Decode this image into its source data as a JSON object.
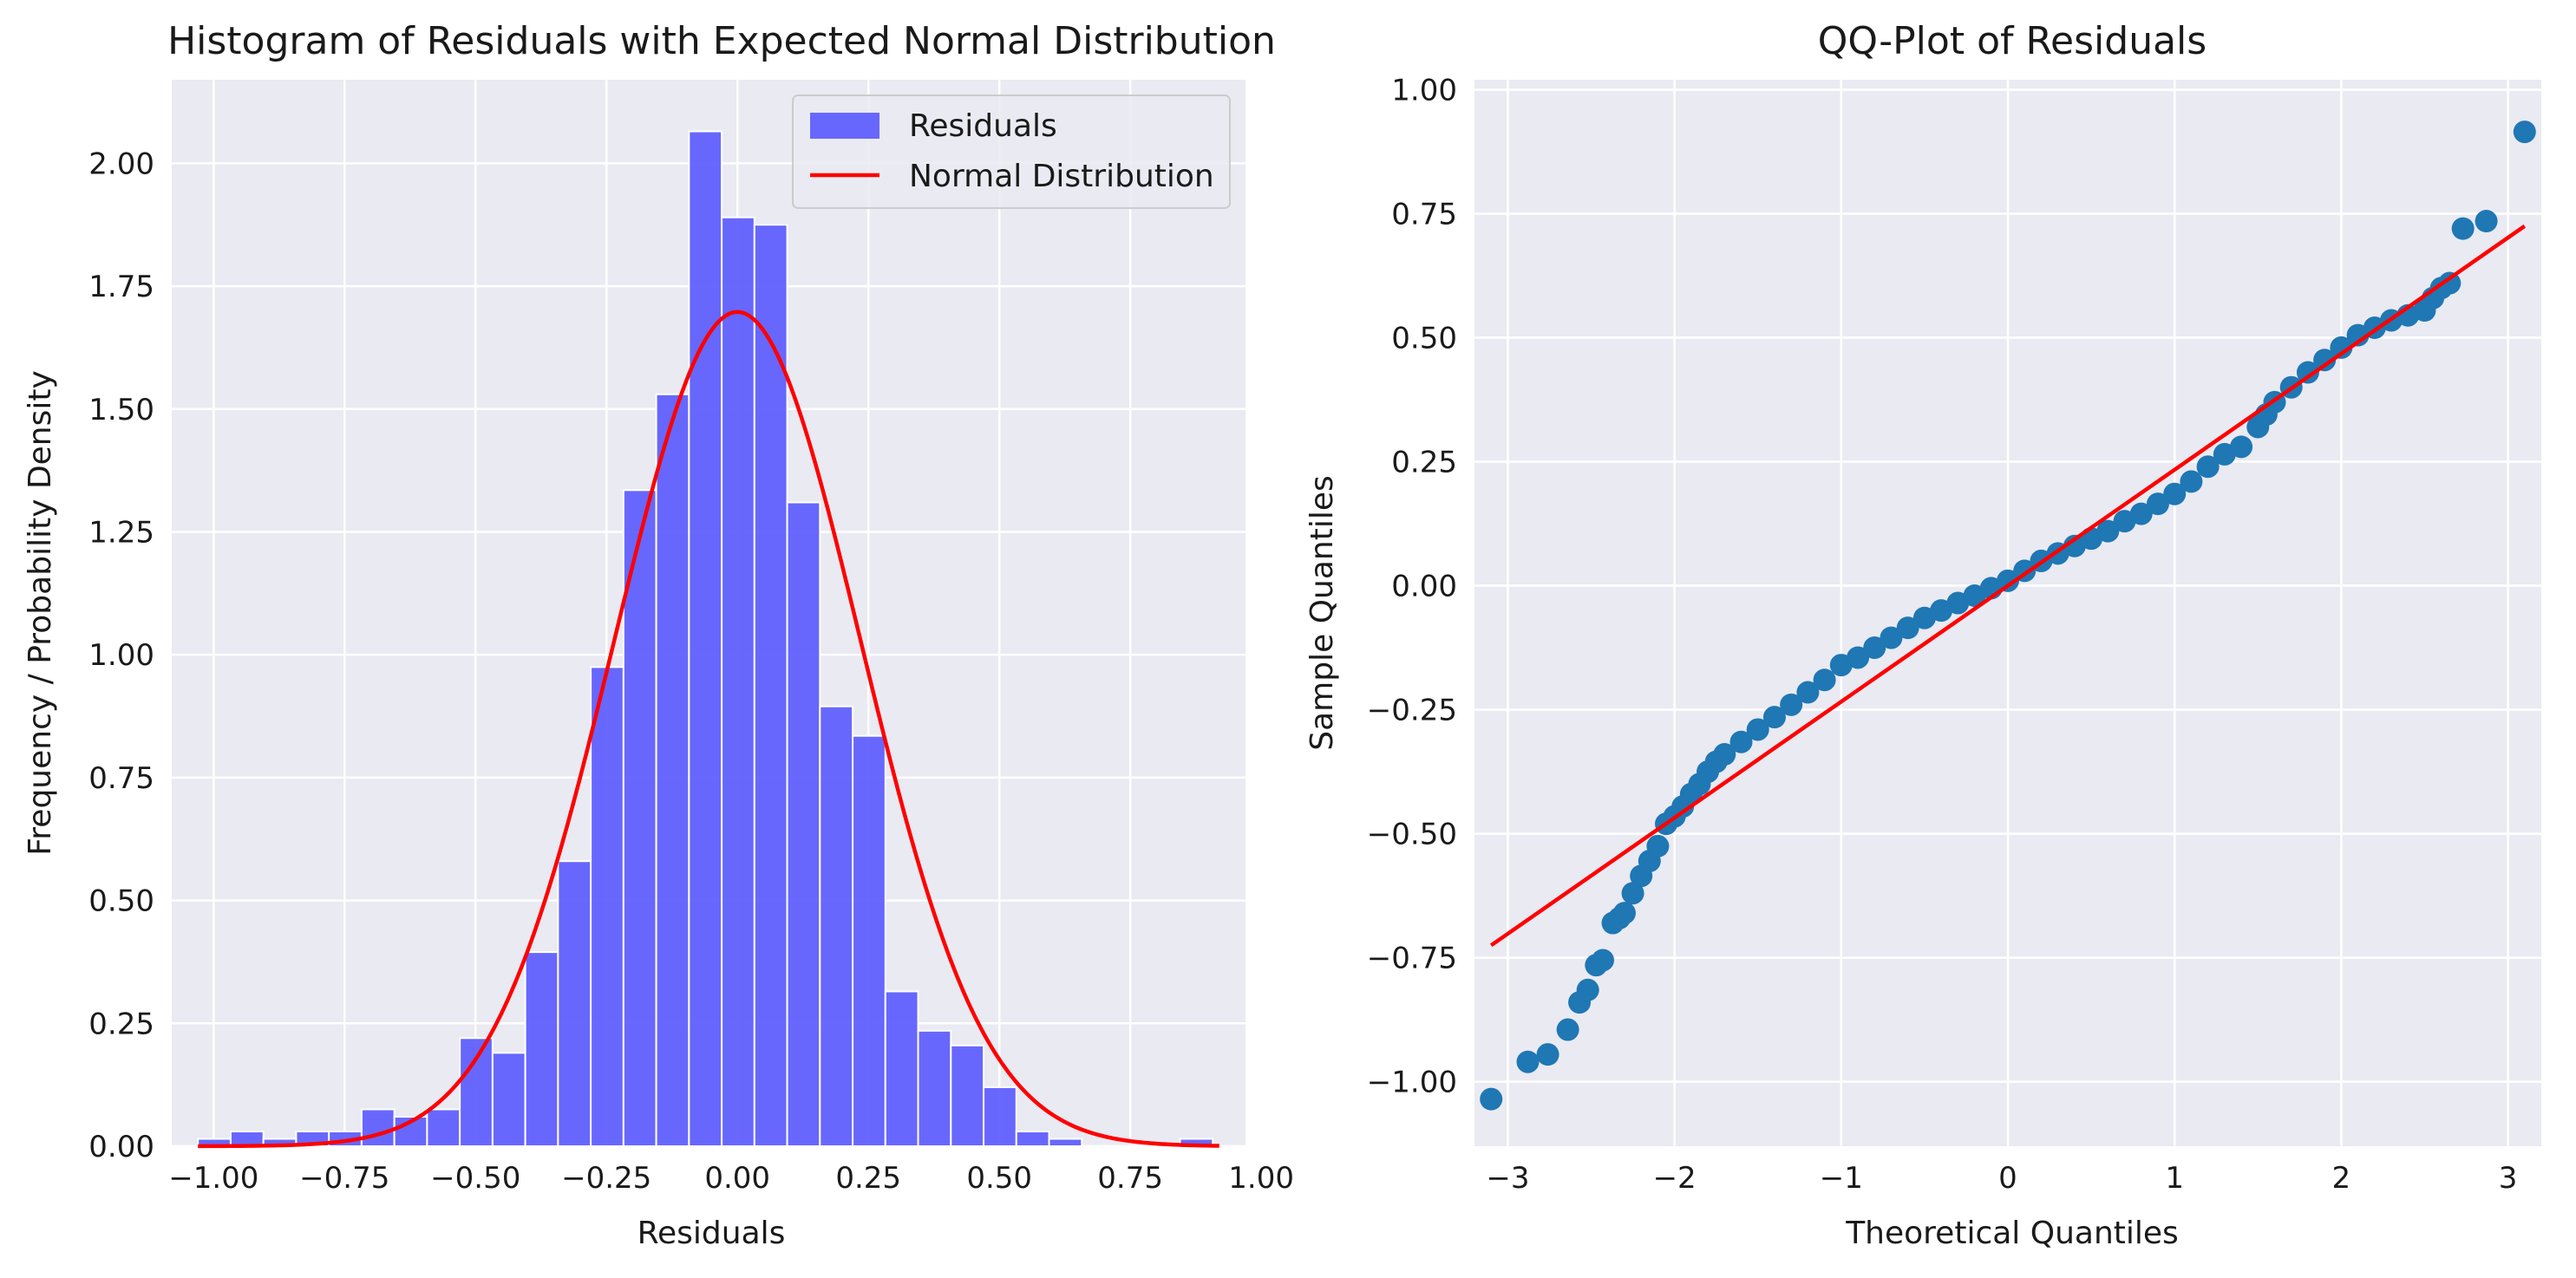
{
  "chart_data": [
    {
      "type": "bar",
      "title": "Histogram of Residuals with Expected Normal Distribution",
      "xlabel": "Residuals",
      "ylabel": "Frequency / Probability Density",
      "xlim": [
        -1.08,
        0.97
      ],
      "ylim": [
        0,
        2.17
      ],
      "xticks": [
        -1.0,
        -0.75,
        -0.5,
        -0.25,
        0.0,
        0.25,
        0.5,
        0.75,
        1.0
      ],
      "xtick_labels": [
        "−1.00",
        "−0.75",
        "−0.50",
        "−0.25",
        "0.00",
        "0.25",
        "0.50",
        "0.75",
        "1.00"
      ],
      "yticks": [
        0,
        0.25,
        0.5,
        0.75,
        1.0,
        1.25,
        1.5,
        1.75,
        2.0
      ],
      "ytick_labels": [
        "0.00",
        "0.25",
        "0.50",
        "0.75",
        "1.00",
        "1.25",
        "1.50",
        "1.75",
        "2.00"
      ],
      "grid": true,
      "background": "#eaeaf2",
      "legend_position": "top-right",
      "bin_edges": [
        -1.03,
        -0.9675,
        -0.905,
        -0.8425,
        -0.78,
        -0.7175,
        -0.655,
        -0.5925,
        -0.53,
        -0.4675,
        -0.405,
        -0.3425,
        -0.28,
        -0.2175,
        -0.155,
        -0.0925,
        -0.03,
        0.0325,
        0.095,
        0.1575,
        0.22,
        0.2825,
        0.345,
        0.4075,
        0.47,
        0.5325,
        0.595,
        0.6575,
        0.72,
        0.7825,
        0.845,
        0.9075
      ],
      "series": [
        {
          "name": "Residuals",
          "kind": "histogram",
          "color": "#5b5bff",
          "values": [
            0.015,
            0.03,
            0.015,
            0.03,
            0.03,
            0.075,
            0.06,
            0.075,
            0.22,
            0.19,
            0.395,
            0.58,
            0.975,
            1.335,
            1.53,
            2.065,
            1.89,
            1.875,
            1.31,
            0.895,
            0.835,
            0.315,
            0.235,
            0.205,
            0.12,
            0.03,
            0.015,
            0.0,
            0.0,
            0.0,
            0.015
          ]
        },
        {
          "name": "Normal Distribution",
          "kind": "line",
          "color": "#ff0000",
          "mean": 0.0,
          "std": 0.235,
          "x_range": [
            -1.03,
            0.92
          ]
        }
      ]
    },
    {
      "type": "scatter",
      "title": "QQ-Plot of Residuals",
      "xlabel": "Theoretical Quantiles",
      "ylabel": "Sample Quantiles",
      "xlim": [
        -3.2,
        3.2
      ],
      "ylim": [
        -1.13,
        1.02
      ],
      "xticks": [
        -3,
        -2,
        -1,
        0,
        1,
        2,
        3
      ],
      "xtick_labels": [
        "−3",
        "−2",
        "−1",
        "0",
        "1",
        "2",
        "3"
      ],
      "yticks": [
        -1.0,
        -0.75,
        -0.5,
        -0.25,
        0.0,
        0.25,
        0.5,
        0.75,
        1.0
      ],
      "ytick_labels": [
        "−1.00",
        "−0.75",
        "−0.50",
        "−0.25",
        "0.00",
        "0.25",
        "0.50",
        "0.75",
        "1.00"
      ],
      "grid": true,
      "background": "#eaeaf2",
      "series": [
        {
          "kind": "points",
          "color": "#1f77b4",
          "x": [
            -3.1,
            -2.88,
            -2.76,
            -2.64,
            -2.57,
            -2.52,
            -2.47,
            -2.43,
            -2.37,
            -2.33,
            -2.3,
            -2.25,
            -2.2,
            -2.15,
            -2.1,
            -2.05,
            -2.0,
            -1.95,
            -1.9,
            -1.85,
            -1.8,
            -1.75,
            -1.7,
            -1.6,
            -1.5,
            -1.4,
            -1.3,
            -1.2,
            -1.1,
            -1.0,
            -0.9,
            -0.8,
            -0.7,
            -0.6,
            -0.5,
            -0.4,
            -0.3,
            -0.2,
            -0.1,
            0.0,
            0.1,
            0.2,
            0.3,
            0.4,
            0.5,
            0.6,
            0.7,
            0.8,
            0.9,
            1.0,
            1.1,
            1.2,
            1.3,
            1.4,
            1.5,
            1.55,
            1.6,
            1.7,
            1.8,
            1.9,
            2.0,
            2.1,
            2.2,
            2.3,
            2.4,
            2.5,
            2.55,
            2.6,
            2.65,
            2.73,
            2.87,
            3.1
          ],
          "y": [
            -1.035,
            -0.96,
            -0.945,
            -0.895,
            -0.84,
            -0.815,
            -0.765,
            -0.755,
            -0.68,
            -0.67,
            -0.66,
            -0.62,
            -0.585,
            -0.555,
            -0.525,
            -0.48,
            -0.465,
            -0.445,
            -0.42,
            -0.4,
            -0.375,
            -0.355,
            -0.34,
            -0.315,
            -0.29,
            -0.265,
            -0.24,
            -0.215,
            -0.19,
            -0.16,
            -0.145,
            -0.125,
            -0.105,
            -0.085,
            -0.065,
            -0.05,
            -0.035,
            -0.02,
            -0.005,
            0.01,
            0.03,
            0.05,
            0.065,
            0.08,
            0.095,
            0.11,
            0.13,
            0.145,
            0.165,
            0.185,
            0.21,
            0.24,
            0.265,
            0.28,
            0.32,
            0.345,
            0.37,
            0.4,
            0.43,
            0.455,
            0.48,
            0.505,
            0.52,
            0.535,
            0.545,
            0.555,
            0.58,
            0.6,
            0.61,
            0.72,
            0.735,
            0.915
          ]
        },
        {
          "kind": "reference-line",
          "color": "#ff0000",
          "x": [
            -3.1,
            3.1
          ],
          "y": [
            -0.725,
            0.725
          ]
        }
      ]
    }
  ]
}
